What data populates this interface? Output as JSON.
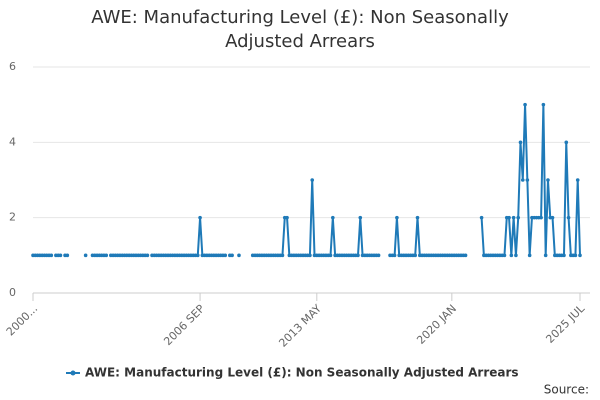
{
  "chart_data": {
    "type": "line",
    "title": "AWE: Manufacturing Level (£): Non Seasonally Adjusted Arrears",
    "source_label": "Source:",
    "categories": [
      "2000...",
      null,
      null,
      null,
      null,
      null,
      null,
      null,
      null,
      null,
      null,
      null,
      null,
      null,
      null,
      null,
      null,
      null,
      null,
      null,
      null,
      null,
      null,
      null,
      null,
      null,
      null,
      null,
      null,
      null,
      null,
      null,
      null,
      null,
      null,
      null,
      null,
      null,
      null,
      null,
      null,
      null,
      null,
      null,
      null,
      null,
      null,
      null,
      null,
      null,
      null,
      null,
      null,
      null,
      null,
      null,
      null,
      null,
      null,
      null,
      null,
      null,
      null,
      null,
      null,
      null,
      null,
      null,
      null,
      null,
      null,
      null,
      null,
      "2006 SEP",
      null,
      null,
      null,
      null,
      null,
      null,
      null,
      null,
      null,
      null,
      null,
      null,
      null,
      null,
      null,
      null,
      null,
      null,
      null,
      null,
      null,
      null,
      null,
      null,
      null,
      null,
      null,
      null,
      null,
      null,
      null,
      null,
      null,
      null,
      null,
      null,
      null,
      null,
      null,
      null,
      null,
      null,
      null,
      null,
      null,
      null,
      null,
      null,
      null,
      null,
      "2013 MAY",
      null,
      null,
      null,
      null,
      null,
      null,
      null,
      null,
      null,
      null,
      null,
      null,
      null,
      null,
      null,
      null,
      null,
      null,
      null,
      null,
      null,
      null,
      null,
      null,
      null,
      null,
      null,
      null,
      null,
      null,
      null,
      null,
      null,
      null,
      null,
      null,
      null,
      null,
      null,
      null,
      null,
      null,
      null,
      null,
      null,
      null,
      null,
      null,
      null,
      null,
      null,
      null,
      null,
      null,
      null,
      null,
      null,
      null,
      "2020 JAN",
      null,
      null,
      null,
      null,
      null,
      null,
      null,
      null,
      null,
      null,
      null,
      null,
      null,
      null,
      null,
      null,
      null,
      null,
      null,
      null,
      null,
      null,
      null,
      null,
      null,
      null,
      null,
      null,
      null,
      null,
      null,
      null,
      null,
      null,
      null,
      null,
      null,
      null,
      null,
      null,
      null,
      null,
      null,
      null,
      null,
      null,
      null,
      null,
      null,
      null,
      null,
      null,
      null,
      null,
      null,
      "2025 JUL"
    ],
    "series": [
      {
        "name": "AWE: Manufacturing Level (£): Non Seasonally Adjusted Arrears",
        "color": "#1f7ab8",
        "values": [
          1,
          1,
          1,
          1,
          1,
          1,
          1,
          1,
          1,
          null,
          1,
          1,
          1,
          null,
          1,
          1,
          null,
          null,
          null,
          null,
          null,
          null,
          null,
          1,
          null,
          null,
          1,
          1,
          1,
          1,
          1,
          1,
          1,
          null,
          1,
          1,
          1,
          1,
          1,
          1,
          1,
          1,
          1,
          1,
          1,
          1,
          1,
          1,
          1,
          1,
          1,
          null,
          1,
          1,
          1,
          1,
          1,
          1,
          1,
          1,
          1,
          1,
          1,
          1,
          1,
          1,
          1,
          1,
          1,
          1,
          1,
          1,
          1,
          2,
          1,
          1,
          1,
          1,
          1,
          1,
          1,
          1,
          1,
          1,
          1,
          null,
          1,
          1,
          null,
          null,
          1,
          null,
          null,
          null,
          null,
          null,
          1,
          1,
          1,
          1,
          1,
          1,
          1,
          1,
          1,
          1,
          1,
          1,
          1,
          1,
          2,
          2,
          1,
          1,
          1,
          1,
          1,
          1,
          1,
          1,
          1,
          1,
          3,
          1,
          1,
          1,
          1,
          1,
          1,
          1,
          1,
          2,
          1,
          1,
          1,
          1,
          1,
          1,
          1,
          1,
          1,
          1,
          1,
          2,
          1,
          1,
          1,
          1,
          1,
          1,
          1,
          1,
          null,
          null,
          null,
          null,
          1,
          1,
          1,
          2,
          1,
          1,
          1,
          1,
          1,
          1,
          1,
          1,
          2,
          1,
          1,
          1,
          1,
          1,
          1,
          1,
          1,
          1,
          1,
          1,
          1,
          1,
          1,
          1,
          1,
          1,
          1,
          1,
          1,
          1,
          null,
          null,
          null,
          null,
          null,
          null,
          2,
          1,
          1,
          1,
          1,
          1,
          1,
          1,
          1,
          1,
          1,
          2,
          2,
          1,
          2,
          1,
          2,
          4,
          3,
          5,
          3,
          1,
          2,
          2,
          2,
          2,
          2,
          5,
          1,
          3,
          2,
          2,
          1,
          1,
          1,
          1,
          1,
          4,
          2,
          1,
          1,
          1,
          3,
          1
        ]
      }
    ],
    "ylim": [
      0,
      6
    ],
    "yticks": [
      0,
      2,
      4,
      6
    ],
    "grid": true,
    "legend": "bottom"
  }
}
